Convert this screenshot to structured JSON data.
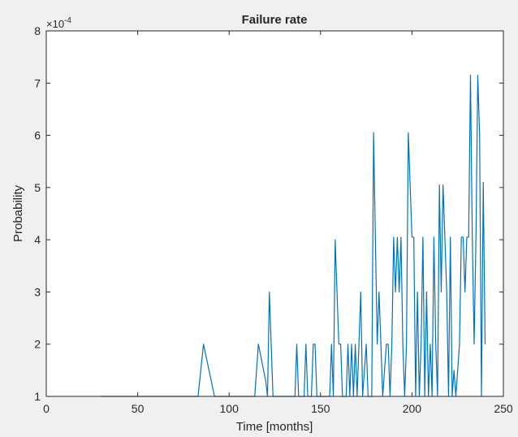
{
  "chart_data": {
    "type": "line",
    "title": "Failure rate",
    "xlabel": "Time [months]",
    "ylabel": "Probability",
    "y_exponent_label": "×10",
    "y_exponent_power": "-4",
    "xlim": [
      0,
      250
    ],
    "ylim": [
      1,
      8
    ],
    "x_ticks": [
      0,
      50,
      100,
      150,
      200,
      250
    ],
    "y_ticks": [
      1,
      2,
      3,
      4,
      5,
      6,
      7,
      8
    ],
    "x_tick_labels": [
      "0",
      "50",
      "100",
      "150",
      "200",
      "250"
    ],
    "y_tick_labels": [
      "1",
      "2",
      "3",
      "4",
      "5",
      "6",
      "7",
      "8"
    ],
    "grid": false,
    "series": [
      {
        "color": "#0072bd",
        "points": [
          [
            30,
            1
          ],
          [
            83,
            1
          ],
          [
            86,
            2
          ],
          [
            92,
            1
          ],
          [
            114,
            1
          ],
          [
            116,
            2
          ],
          [
            120,
            1.3
          ],
          [
            121,
            1
          ],
          [
            122,
            3
          ],
          [
            124,
            1
          ],
          [
            136,
            1
          ],
          [
            137,
            2
          ],
          [
            138,
            1
          ],
          [
            141,
            1
          ],
          [
            142,
            2
          ],
          [
            143,
            1
          ],
          [
            145,
            1
          ],
          [
            146,
            2
          ],
          [
            147,
            2
          ],
          [
            148,
            1
          ],
          [
            155,
            1
          ],
          [
            156,
            2
          ],
          [
            157,
            1
          ],
          [
            158,
            4
          ],
          [
            160,
            2
          ],
          [
            161,
            2
          ],
          [
            162,
            1
          ],
          [
            164,
            1
          ],
          [
            165,
            2
          ],
          [
            166,
            1
          ],
          [
            167,
            2
          ],
          [
            168,
            1
          ],
          [
            169,
            2
          ],
          [
            170,
            1
          ],
          [
            171,
            2
          ],
          [
            172,
            3
          ],
          [
            173,
            1
          ],
          [
            175,
            2
          ],
          [
            176,
            1
          ],
          [
            178,
            1
          ],
          [
            179,
            6.05
          ],
          [
            181,
            2
          ],
          [
            182,
            3
          ],
          [
            183,
            2
          ],
          [
            184,
            1
          ],
          [
            186,
            2
          ],
          [
            187,
            2
          ],
          [
            188,
            1
          ],
          [
            189,
            2
          ],
          [
            190,
            4.05
          ],
          [
            191,
            3
          ],
          [
            192,
            4.05
          ],
          [
            193,
            3
          ],
          [
            194,
            4.05
          ],
          [
            195,
            2
          ],
          [
            196,
            1
          ],
          [
            197,
            2
          ],
          [
            198,
            6.05
          ],
          [
            200,
            4.05
          ],
          [
            201,
            4.05
          ],
          [
            202,
            1
          ],
          [
            203,
            3
          ],
          [
            204,
            1
          ],
          [
            205,
            2
          ],
          [
            206,
            4.05
          ],
          [
            207,
            1
          ],
          [
            208,
            3
          ],
          [
            209,
            1
          ],
          [
            210,
            2
          ],
          [
            211,
            1
          ],
          [
            212,
            4.05
          ],
          [
            213,
            2
          ],
          [
            214,
            1
          ],
          [
            215,
            5.05
          ],
          [
            216,
            3
          ],
          [
            217,
            5.05
          ],
          [
            218,
            4.05
          ],
          [
            219,
            3
          ],
          [
            220,
            1
          ],
          [
            221,
            4.05
          ],
          [
            222,
            1
          ],
          [
            223,
            1.5
          ],
          [
            224,
            1
          ],
          [
            226,
            2
          ],
          [
            227,
            4.05
          ],
          [
            228,
            4.05
          ],
          [
            229,
            3
          ],
          [
            230,
            4.05
          ],
          [
            231,
            4.05
          ],
          [
            232,
            7.15
          ],
          [
            233,
            4.05
          ],
          [
            234,
            2
          ],
          [
            235,
            4.05
          ],
          [
            236,
            7.15
          ],
          [
            237,
            6
          ],
          [
            238,
            1
          ],
          [
            239,
            5.1
          ],
          [
            240,
            2
          ]
        ]
      }
    ]
  }
}
